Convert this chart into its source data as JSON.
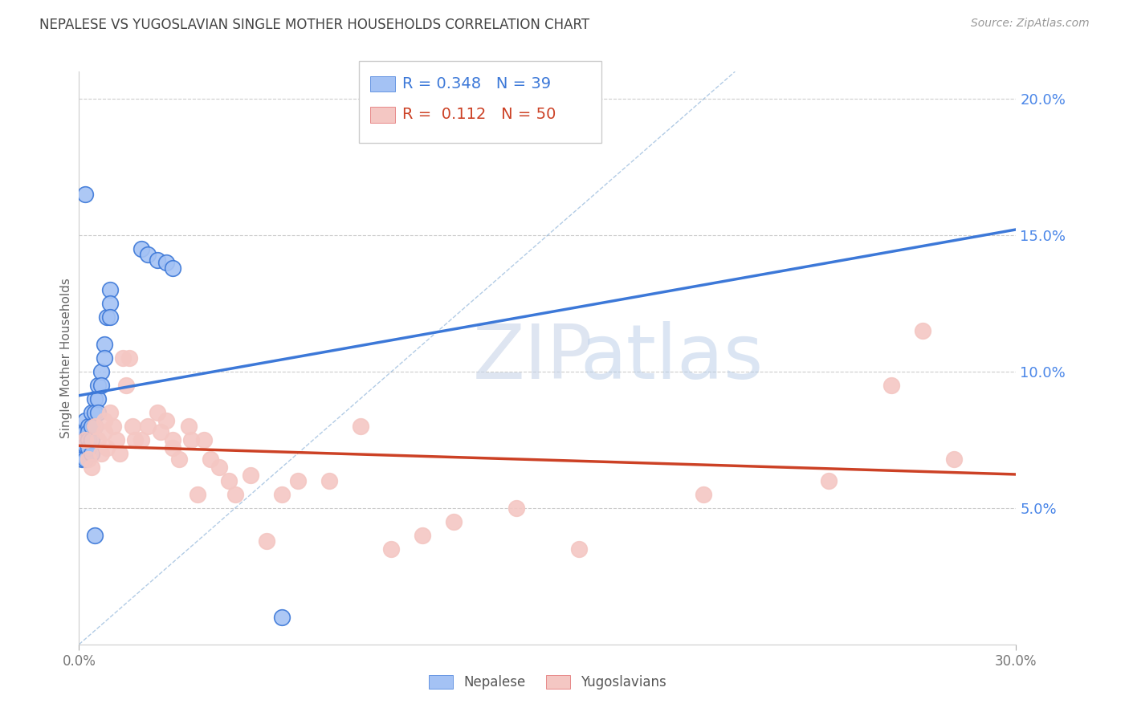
{
  "title": "NEPALESE VS YUGOSLAVIAN SINGLE MOTHER HOUSEHOLDS CORRELATION CHART",
  "source": "Source: ZipAtlas.com",
  "ylabel": "Single Mother Households",
  "right_yticks": [
    "20.0%",
    "15.0%",
    "10.0%",
    "5.0%"
  ],
  "right_ytick_vals": [
    0.2,
    0.15,
    0.1,
    0.05
  ],
  "xlim": [
    0.0,
    0.3
  ],
  "ylim": [
    0.0,
    0.21
  ],
  "legend_blue_R": "0.348",
  "legend_blue_N": "39",
  "legend_pink_R": "0.112",
  "legend_pink_N": "50",
  "watermark_zip": "ZIP",
  "watermark_atlas": "atlas",
  "blue_color": "#a4c2f4",
  "pink_color": "#f4c7c3",
  "blue_line_color": "#3c78d8",
  "pink_line_color": "#cc4125",
  "title_color": "#434343",
  "source_color": "#999999",
  "right_axis_color": "#4a86e8",
  "legend_border_color": "#cccccc",
  "nepalese_x": [
    0.001,
    0.001,
    0.001,
    0.001,
    0.002,
    0.002,
    0.002,
    0.002,
    0.002,
    0.003,
    0.003,
    0.003,
    0.003,
    0.004,
    0.004,
    0.004,
    0.004,
    0.005,
    0.005,
    0.005,
    0.006,
    0.006,
    0.006,
    0.007,
    0.007,
    0.008,
    0.008,
    0.009,
    0.01,
    0.01,
    0.01,
    0.02,
    0.022,
    0.025,
    0.028,
    0.03,
    0.065,
    0.002,
    0.005
  ],
  "nepalese_y": [
    0.075,
    0.072,
    0.07,
    0.068,
    0.082,
    0.078,
    0.075,
    0.073,
    0.068,
    0.08,
    0.078,
    0.075,
    0.072,
    0.085,
    0.08,
    0.075,
    0.07,
    0.09,
    0.085,
    0.08,
    0.095,
    0.09,
    0.085,
    0.1,
    0.095,
    0.11,
    0.105,
    0.12,
    0.13,
    0.125,
    0.12,
    0.145,
    0.143,
    0.141,
    0.14,
    0.138,
    0.01,
    0.165,
    0.04
  ],
  "yugoslavian_x": [
    0.002,
    0.003,
    0.004,
    0.005,
    0.006,
    0.007,
    0.008,
    0.008,
    0.009,
    0.01,
    0.011,
    0.012,
    0.013,
    0.014,
    0.015,
    0.016,
    0.017,
    0.018,
    0.02,
    0.022,
    0.025,
    0.026,
    0.028,
    0.03,
    0.03,
    0.032,
    0.035,
    0.036,
    0.038,
    0.04,
    0.042,
    0.045,
    0.048,
    0.05,
    0.055,
    0.06,
    0.065,
    0.07,
    0.08,
    0.09,
    0.1,
    0.11,
    0.12,
    0.14,
    0.16,
    0.2,
    0.24,
    0.26,
    0.27,
    0.28
  ],
  "yugoslavian_y": [
    0.075,
    0.068,
    0.065,
    0.08,
    0.075,
    0.07,
    0.082,
    0.078,
    0.072,
    0.085,
    0.08,
    0.075,
    0.07,
    0.105,
    0.095,
    0.105,
    0.08,
    0.075,
    0.075,
    0.08,
    0.085,
    0.078,
    0.082,
    0.075,
    0.072,
    0.068,
    0.08,
    0.075,
    0.055,
    0.075,
    0.068,
    0.065,
    0.06,
    0.055,
    0.062,
    0.038,
    0.055,
    0.06,
    0.06,
    0.08,
    0.035,
    0.04,
    0.045,
    0.05,
    0.035,
    0.055,
    0.06,
    0.095,
    0.115,
    0.068
  ]
}
